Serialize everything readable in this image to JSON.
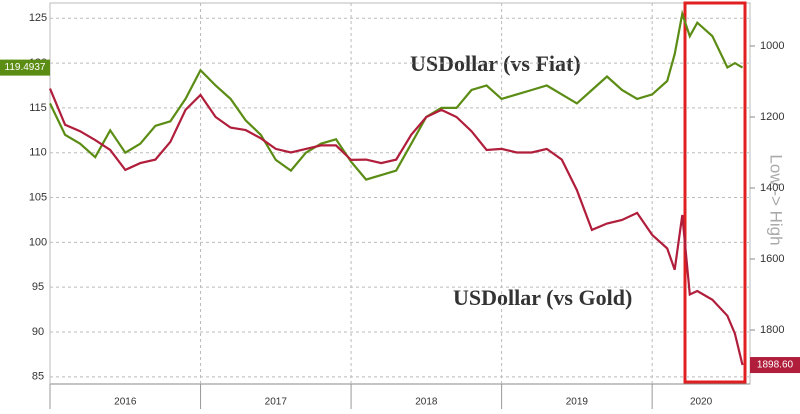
{
  "chart_data": {
    "type": "line",
    "x": [
      2016.0,
      2016.1,
      2016.2,
      2016.3,
      2016.4,
      2016.5,
      2016.6,
      2016.7,
      2016.8,
      2016.9,
      2017.0,
      2017.1,
      2017.2,
      2017.3,
      2017.4,
      2017.5,
      2017.6,
      2017.7,
      2017.8,
      2017.9,
      2018.0,
      2018.1,
      2018.2,
      2018.3,
      2018.4,
      2018.5,
      2018.6,
      2018.7,
      2018.8,
      2018.9,
      2019.0,
      2019.1,
      2019.2,
      2019.3,
      2019.4,
      2019.5,
      2019.6,
      2019.7,
      2019.8,
      2019.9,
      2020.0,
      2020.1,
      2020.15,
      2020.2,
      2020.25,
      2020.3,
      2020.4,
      2020.5,
      2020.55,
      2020.6
    ],
    "series": [
      {
        "name": "USDollar (vs Fiat)",
        "color": "#5b8c14",
        "end_label": "119.4937",
        "values": [
          115.5,
          112,
          111,
          109.5,
          112.5,
          110,
          111,
          113,
          113.5,
          116,
          119.2,
          117.5,
          116,
          113.6,
          112,
          109.2,
          108,
          110,
          111,
          111.5,
          109,
          107,
          107.5,
          108,
          111,
          114,
          115,
          115,
          117,
          117.5,
          116,
          116.5,
          117,
          117.5,
          116.5,
          115.5,
          117,
          118.5,
          117,
          116,
          116.5,
          118,
          121,
          125.5,
          123,
          124.5,
          123,
          119.5,
          120,
          119.4937
        ]
      },
      {
        "name": "USDollar (vs Gold)",
        "color": "#b01e3c",
        "axis": "y2",
        "end_label": "1898.60",
        "values": [
          1120,
          1222,
          1240,
          1265,
          1293,
          1349,
          1330,
          1320,
          1270,
          1180,
          1138,
          1200,
          1230,
          1237,
          1260,
          1290,
          1300,
          1290,
          1280,
          1280,
          1321,
          1320,
          1330,
          1320,
          1250,
          1200,
          1180,
          1200,
          1240,
          1293,
          1290,
          1300,
          1300,
          1290,
          1320,
          1406,
          1518,
          1500,
          1490,
          1470,
          1532,
          1570,
          1630,
          1476,
          1700,
          1690,
          1715,
          1760,
          1810,
          1898.6
        ]
      }
    ],
    "xlim": [
      2016.0,
      2020.65
    ],
    "xticks": [
      2016,
      2017,
      2018,
      2019,
      2020
    ],
    "ylim": [
      84.2,
      126.7
    ],
    "yticks": [
      85,
      90,
      95,
      100,
      105,
      110,
      115,
      120,
      125
    ],
    "y2lim": [
      879,
      1952
    ],
    "y2_inverted": true,
    "y2ticks": [
      1000,
      1200,
      1400,
      1600,
      1800
    ],
    "y2label": "Low -> High",
    "grid": true
  }
}
